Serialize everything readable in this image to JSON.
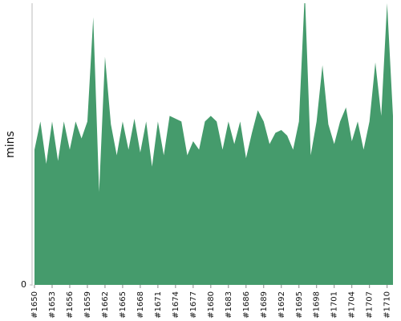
{
  "chart_data": {
    "type": "area",
    "y_label": "mins",
    "color": "#459b6c",
    "categories": [
      "#1650",
      null,
      null,
      "#1653",
      null,
      null,
      "#1656",
      null,
      null,
      "#1659",
      null,
      null,
      "#1662",
      null,
      null,
      "#1665",
      null,
      null,
      "#1668",
      null,
      null,
      "#1671",
      null,
      null,
      "#1674",
      null,
      null,
      "#1677",
      null,
      null,
      "#1680",
      null,
      null,
      "#1683",
      null,
      null,
      "#1686",
      null,
      null,
      "#1689",
      null,
      null,
      "#1692",
      null,
      null,
      "#1695",
      null,
      null,
      "#1698",
      null,
      null,
      "#1701",
      null,
      null,
      "#1704",
      null,
      null,
      "#1707",
      null,
      null,
      "#1710",
      null
    ],
    "values": [
      48,
      58,
      43,
      58,
      44,
      58,
      48,
      58,
      52,
      58,
      95,
      33,
      81,
      57,
      46,
      58,
      48,
      59,
      47,
      58,
      42,
      58,
      46,
      60,
      59,
      58,
      46,
      51,
      48,
      58,
      60,
      58,
      48,
      58,
      50,
      58,
      45,
      54,
      62,
      58,
      50,
      54,
      55,
      53,
      48,
      58,
      104,
      46,
      58,
      78,
      57,
      50,
      58,
      63,
      51,
      58,
      48,
      58,
      79,
      60,
      100,
      60
    ],
    "ylim": [
      0,
      100
    ],
    "yticks": [
      0
    ]
  }
}
